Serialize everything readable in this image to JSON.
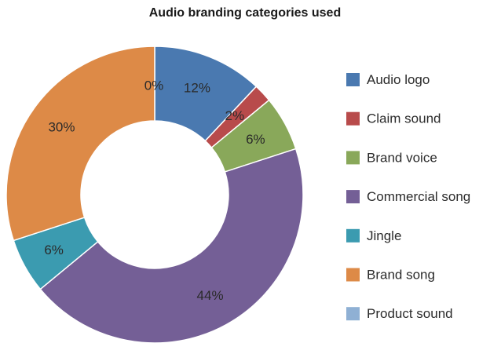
{
  "chart_data": {
    "type": "pie",
    "title": "Audio branding categories used",
    "categories": [
      "Audio logo",
      "Claim sound",
      "Brand voice",
      "Commercial song",
      "Jingle",
      "Brand song",
      "Product sound"
    ],
    "values": [
      12,
      2,
      6,
      44,
      6,
      30,
      0
    ],
    "labels": [
      "12%",
      "2%",
      "6%",
      "44%",
      "6%",
      "30%",
      "0%"
    ],
    "colors": [
      "#4a79b0",
      "#b84b4b",
      "#89a85a",
      "#745f96",
      "#3b9bb0",
      "#dd8a47",
      "#8fb0d4"
    ],
    "donut": true,
    "legend_position": "right"
  }
}
